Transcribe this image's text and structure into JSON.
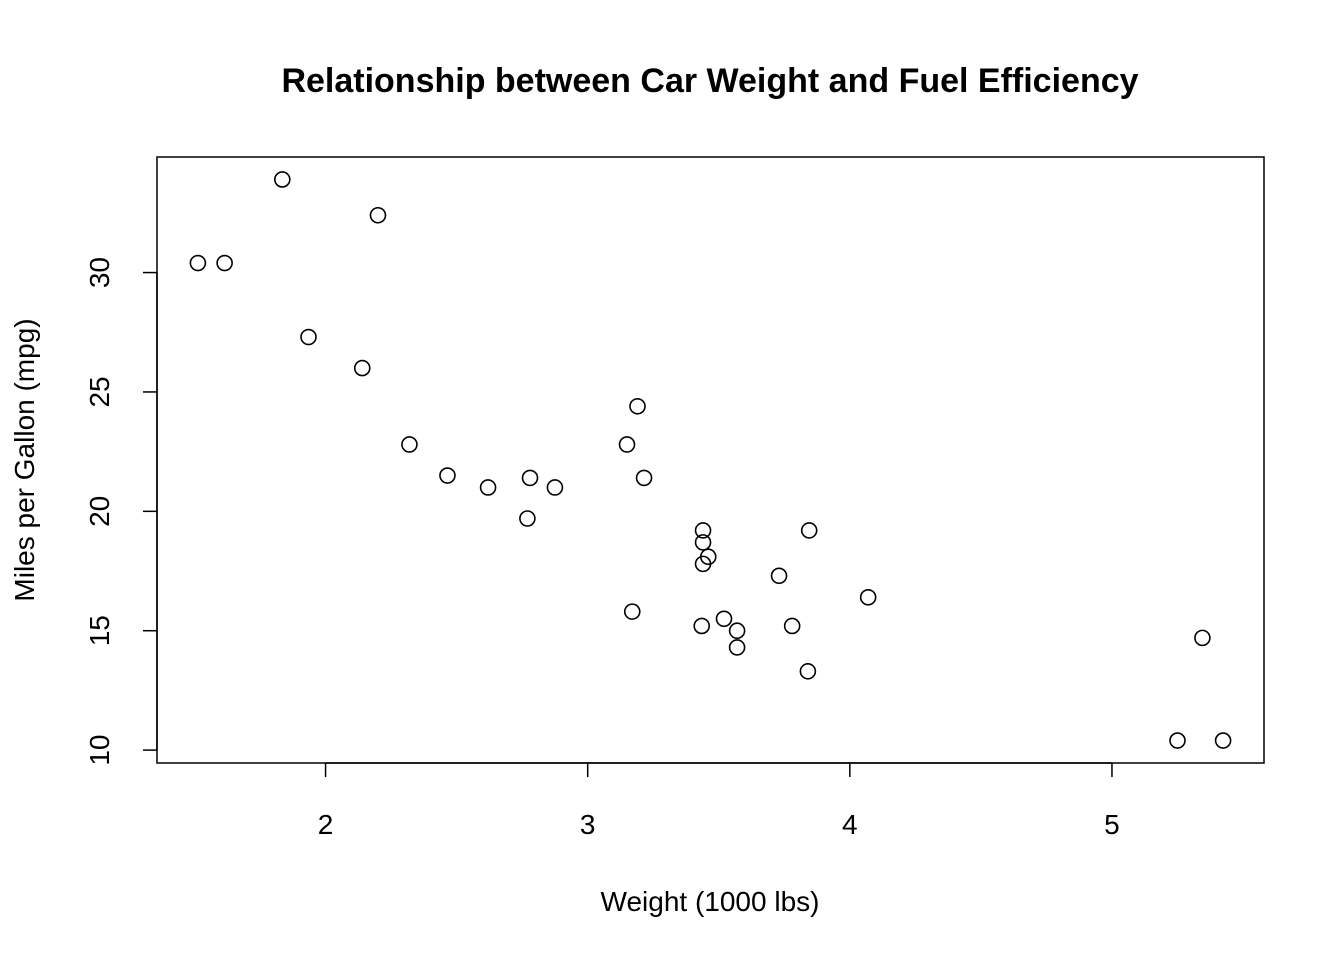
{
  "chart_data": {
    "type": "scatter",
    "title": "Relationship between Car Weight and Fuel Efficiency",
    "xlabel": "Weight (1000 lbs)",
    "ylabel": "Miles per Gallon (mpg)",
    "xlim": [
      1.357,
      5.58
    ],
    "ylim": [
      9.46,
      34.84
    ],
    "xticks": [
      2,
      3,
      4,
      5
    ],
    "yticks": [
      10,
      15,
      20,
      25,
      30
    ],
    "grid": false,
    "marker": "open-circle",
    "points": [
      {
        "x": 2.62,
        "y": 21.0
      },
      {
        "x": 2.875,
        "y": 21.0
      },
      {
        "x": 2.32,
        "y": 22.8
      },
      {
        "x": 3.215,
        "y": 21.4
      },
      {
        "x": 3.44,
        "y": 18.7
      },
      {
        "x": 3.46,
        "y": 18.1
      },
      {
        "x": 3.57,
        "y": 14.3
      },
      {
        "x": 3.19,
        "y": 24.4
      },
      {
        "x": 3.15,
        "y": 22.8
      },
      {
        "x": 3.44,
        "y": 19.2
      },
      {
        "x": 3.44,
        "y": 17.8
      },
      {
        "x": 4.07,
        "y": 16.4
      },
      {
        "x": 3.73,
        "y": 17.3
      },
      {
        "x": 3.78,
        "y": 15.2
      },
      {
        "x": 5.25,
        "y": 10.4
      },
      {
        "x": 5.424,
        "y": 10.4
      },
      {
        "x": 5.345,
        "y": 14.7
      },
      {
        "x": 2.2,
        "y": 32.4
      },
      {
        "x": 1.615,
        "y": 30.4
      },
      {
        "x": 1.835,
        "y": 33.9
      },
      {
        "x": 2.465,
        "y": 21.5
      },
      {
        "x": 3.52,
        "y": 15.5
      },
      {
        "x": 3.435,
        "y": 15.2
      },
      {
        "x": 3.84,
        "y": 13.3
      },
      {
        "x": 3.845,
        "y": 19.2
      },
      {
        "x": 1.935,
        "y": 27.3
      },
      {
        "x": 2.14,
        "y": 26.0
      },
      {
        "x": 1.513,
        "y": 30.4
      },
      {
        "x": 3.17,
        "y": 15.8
      },
      {
        "x": 2.77,
        "y": 19.7
      },
      {
        "x": 3.57,
        "y": 15.0
      },
      {
        "x": 2.78,
        "y": 21.4
      }
    ]
  }
}
